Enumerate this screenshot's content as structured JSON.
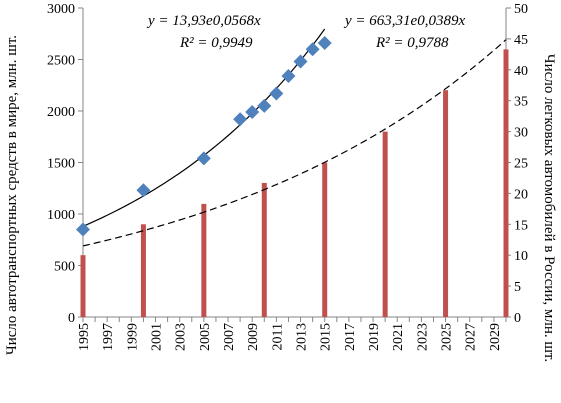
{
  "chart_data": {
    "type": "bar+scatter",
    "colors": {
      "bars": "#c0504d",
      "points": "#4f81bd",
      "trend": "#000000"
    },
    "x_ticks": [
      "1995",
      "1997",
      "1999",
      "2001",
      "2003",
      "2005",
      "2007",
      "2009",
      "2011",
      "2013",
      "2015",
      "2017",
      "2019",
      "2021",
      "2023",
      "2025",
      "2027",
      "2029"
    ],
    "xlim": [
      1995,
      2030
    ],
    "y_left": {
      "label": "Число автотранспортных средств в мире, млн. шт.",
      "lim": [
        0,
        3000
      ],
      "ticks": [
        "0",
        "500",
        "1000",
        "1500",
        "2000",
        "2500",
        "3000"
      ]
    },
    "y_right": {
      "label": "Число легковых автомобилей в России, млн. шт.",
      "lim": [
        0,
        50
      ],
      "ticks": [
        "0",
        "5",
        "10",
        "15",
        "20",
        "25",
        "30",
        "35",
        "40",
        "45",
        "50"
      ]
    },
    "bars_russia": {
      "axis": "right",
      "x": [
        1995,
        2000,
        2005,
        2010,
        2015,
        2020,
        2025,
        2030
      ],
      "values": [
        10,
        15,
        18.3,
        21.7,
        25,
        30,
        36.7,
        43.3
      ]
    },
    "points_world": {
      "axis": "left",
      "x": [
        1995,
        2000,
        2005,
        2008,
        2009,
        2010,
        2011,
        2012,
        2013,
        2014,
        2015
      ],
      "values": [
        850,
        1230,
        1540,
        1920,
        1990,
        2050,
        2170,
        2340,
        2480,
        2600,
        2660
      ]
    },
    "trend_world": {
      "axis": "left",
      "a": 13.93,
      "b": 0.0568,
      "x0": 1995,
      "x_start": 1995,
      "x_end": 2015,
      "style": "solid"
    },
    "trend_russia": {
      "axis": "right",
      "a": 663.31,
      "b": 0.0389,
      "x0": 1995,
      "x_start": 1995,
      "x_end": 2030,
      "style": "dashed",
      "scale_to_axis": 1000
    },
    "annotations": {
      "eq_world": "y = 13,93e0,0568x",
      "r2_world": "R² = 0,9949",
      "eq_russia": "y = 663,31e0,0389x",
      "r2_russia": "R² = 0,9788"
    }
  }
}
